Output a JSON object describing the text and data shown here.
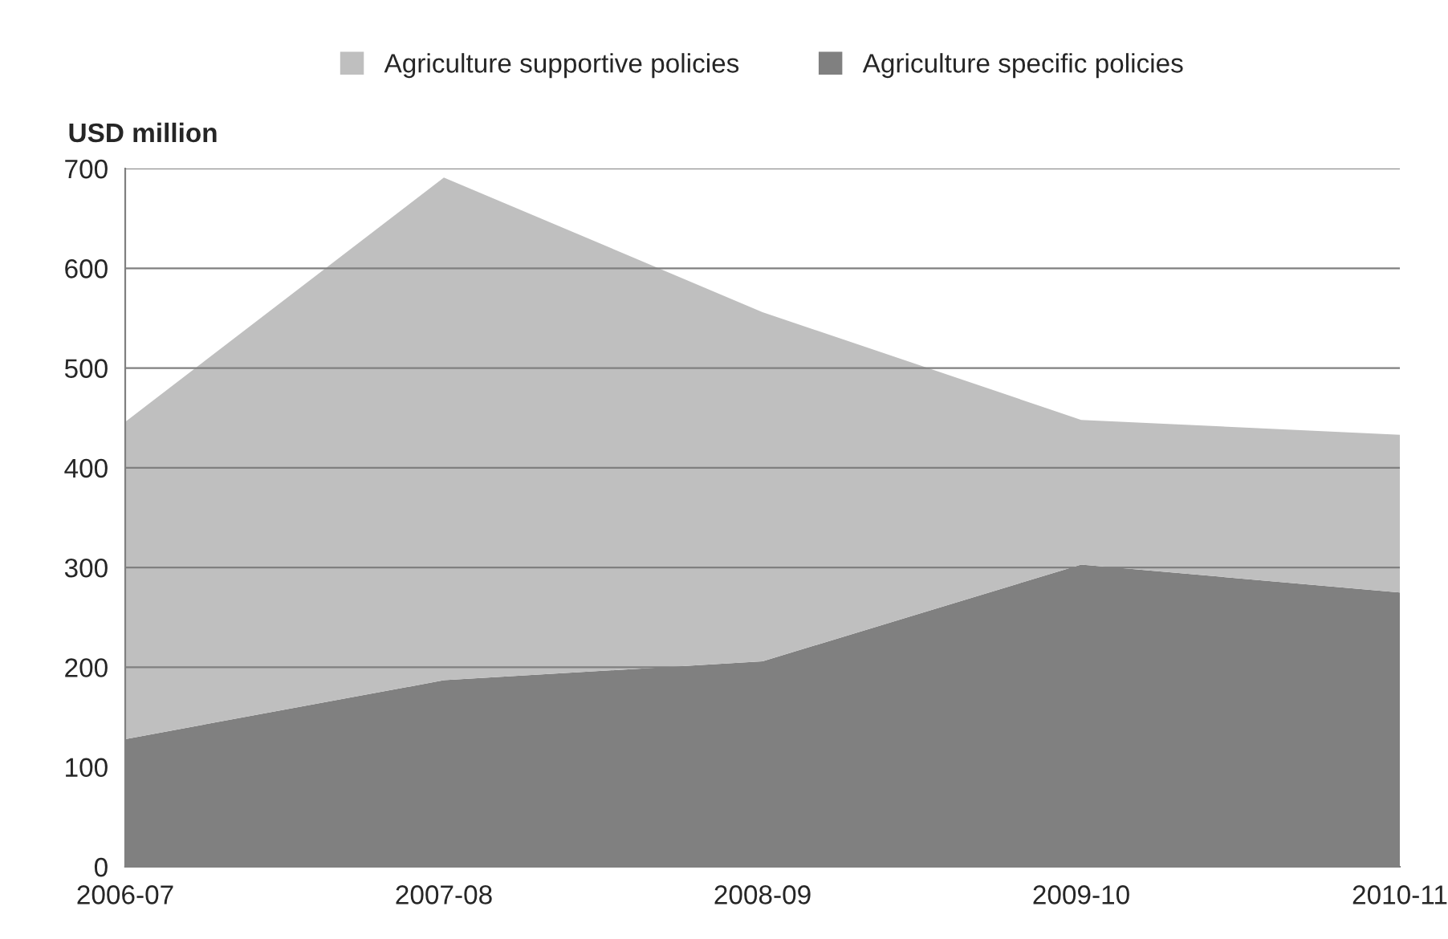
{
  "chart_data": {
    "type": "area",
    "stacked": true,
    "ylabel": "USD million",
    "categories": [
      "2006-07",
      "2007-08",
      "2008-09",
      "2009-10",
      "2010-11"
    ],
    "series": [
      {
        "name": "Agriculture specific policies",
        "color": "#808080",
        "values": [
          128,
          187,
          206,
          303,
          275
        ]
      },
      {
        "name": "Agriculture supportive policies",
        "color": "#bfbfbf",
        "values": [
          318,
          504,
          350,
          145,
          158
        ]
      }
    ],
    "ylim": [
      0,
      700
    ],
    "yticks": [
      0,
      100,
      200,
      300,
      400,
      500,
      600,
      700
    ],
    "grid": "y",
    "legend": "top"
  }
}
